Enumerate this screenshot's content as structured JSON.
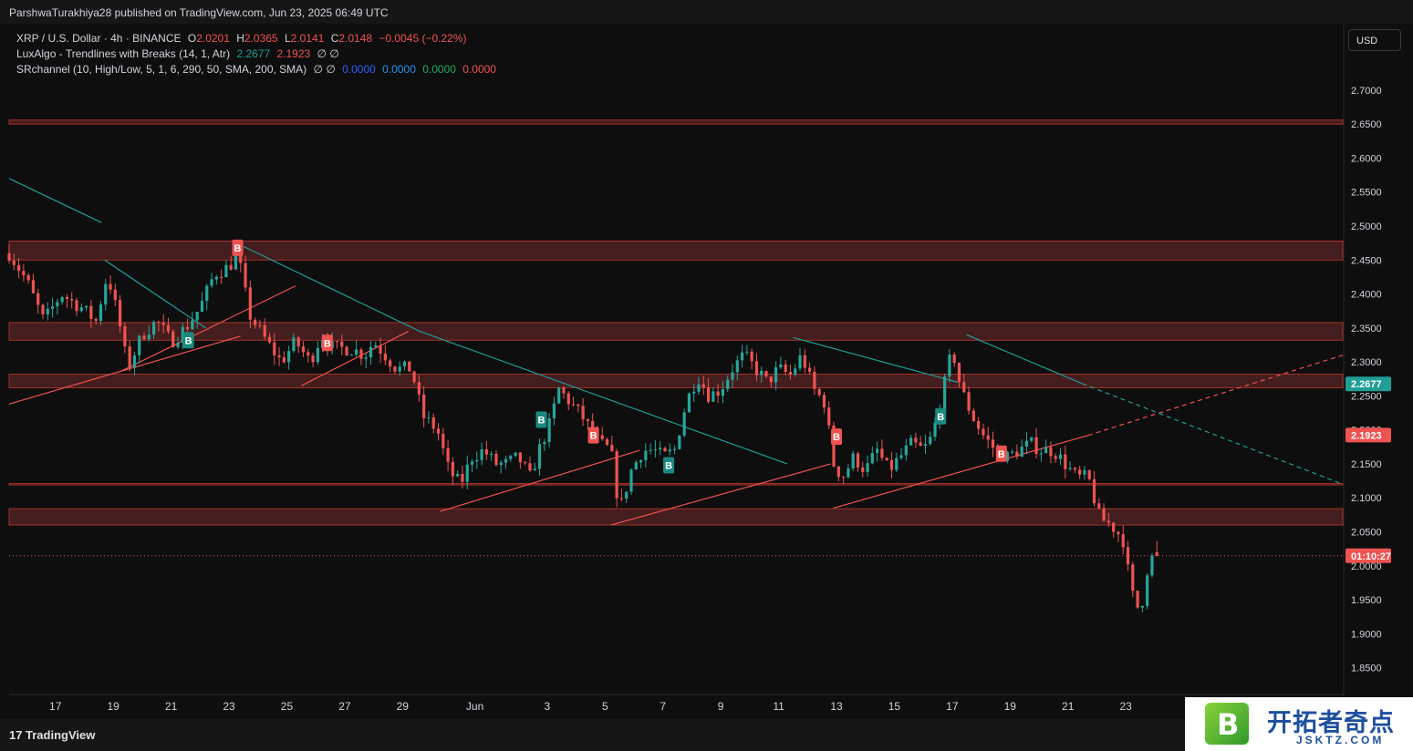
{
  "header": {
    "publish_text": "ParshwaTurakhiya28 published on TradingView.com, Jun 23, 2025 06:49 UTC"
  },
  "legend": {
    "symbol": "XRP / U.S. Dollar · 4h · BINANCE",
    "o_label": "O",
    "o_value": "2.0201",
    "h_label": "H",
    "h_value": "2.0365",
    "l_label": "L",
    "l_value": "2.0141",
    "c_label": "C",
    "c_value": "2.0148",
    "change": "−0.0045 (−0.22%)",
    "ind1_name": "LuxAlgo - Trendlines with Breaks (14, 1, Atr)",
    "ind1_v1": "2.2677",
    "ind1_v2": "2.1923",
    "ind1_v3": "∅ ∅",
    "ind2_name": "SRchannel (10, High/Low, 5, 1, 6, 290, 50, SMA, 200, SMA)",
    "ind2_v0": "∅ ∅",
    "ind2_v1": "0.0000",
    "ind2_v2": "0.0000",
    "ind2_v3": "0.0000",
    "ind2_v4": "0.0000"
  },
  "currency_button": "USD",
  "footer": {
    "brand": "TradingView"
  },
  "watermark": {
    "cn": "开拓者奇点",
    "en": "JSKTZ.COM",
    "mark": "B"
  },
  "colors": {
    "background": "#0e0e0e",
    "up": "#26a69a",
    "down": "#ef5350",
    "zone_fill": "#4a1f20",
    "zone_edge": "#c0392b",
    "trend_up": "#ef5350",
    "trend_down": "#1f9e95"
  },
  "chart_data": {
    "type": "candlestick",
    "ylim": [
      1.82,
      2.72
    ],
    "y_ticks": [
      "2.7000",
      "2.6500",
      "2.6000",
      "2.5500",
      "2.5000",
      "2.4500",
      "2.4000",
      "2.3500",
      "2.3000",
      "2.2500",
      "2.2000",
      "2.1500",
      "2.1000",
      "2.0500",
      "2.0000",
      "1.9500",
      "1.9000",
      "1.8500"
    ],
    "y_tick_values": [
      2.7,
      2.65,
      2.6,
      2.55,
      2.5,
      2.45,
      2.4,
      2.35,
      2.3,
      2.25,
      2.2,
      2.15,
      2.1,
      2.05,
      2.0,
      1.95,
      1.9,
      1.85
    ],
    "x_ticks": [
      "17",
      "19",
      "21",
      "23",
      "25",
      "27",
      "29",
      "Jun",
      "3",
      "5",
      "7",
      "9",
      "11",
      "13",
      "15",
      "17",
      "19",
      "21",
      "23"
    ],
    "x_tick_days": [
      0,
      2,
      4,
      6,
      8,
      10,
      12,
      14.5,
      17,
      19,
      21,
      23,
      25,
      27,
      29,
      31,
      33,
      35,
      37
    ],
    "x_day_range": [
      -1.6,
      44.5
    ],
    "price_labels": [
      {
        "text": "2.2677",
        "value": 2.2677,
        "color": "#1f9e95"
      },
      {
        "text": "2.1923",
        "value": 2.1923,
        "color": "#ef5350"
      },
      {
        "text": "01:10:27",
        "value": 2.0148,
        "color": "#ef5350"
      }
    ],
    "zones": [
      {
        "low": 2.65,
        "high": 2.656
      },
      {
        "low": 2.45,
        "high": 2.478
      },
      {
        "low": 2.332,
        "high": 2.358
      },
      {
        "low": 2.262,
        "high": 2.282
      },
      {
        "low": 2.06,
        "high": 2.084
      },
      {
        "low": 2.119,
        "high": 2.121
      }
    ],
    "trendlines": [
      {
        "kind": "resist",
        "x1": -1.6,
        "y1": 2.57,
        "x2": 1.6,
        "y2": 2.505
      },
      {
        "kind": "resist",
        "x1": 1.7,
        "y1": 2.45,
        "x2": 5.2,
        "y2": 2.35
      },
      {
        "kind": "support",
        "x1": -1.6,
        "y1": 2.238,
        "x2": 6.4,
        "y2": 2.338
      },
      {
        "kind": "support",
        "x1": 2.2,
        "y1": 2.285,
        "x2": 8.3,
        "y2": 2.412
      },
      {
        "kind": "resist",
        "x1": 6.5,
        "y1": 2.47,
        "x2": 12.6,
        "y2": 2.345
      },
      {
        "kind": "resist",
        "x1": 12.6,
        "y1": 2.345,
        "x2": 25.3,
        "y2": 2.15
      },
      {
        "kind": "support",
        "x1": 8.5,
        "y1": 2.265,
        "x2": 12.2,
        "y2": 2.345
      },
      {
        "kind": "support",
        "x1": 13.3,
        "y1": 2.08,
        "x2": 20.2,
        "y2": 2.17
      },
      {
        "kind": "support",
        "x1": 19.2,
        "y1": 2.06,
        "x2": 26.8,
        "y2": 2.15
      },
      {
        "kind": "resist",
        "x1": 25.5,
        "y1": 2.336,
        "x2": 31.2,
        "y2": 2.27
      },
      {
        "kind": "support",
        "x1": 26.9,
        "y1": 2.085,
        "x2": 35.7,
        "y2": 2.192
      },
      {
        "kind": "support-dash",
        "x1": 35.7,
        "y1": 2.192,
        "x2": 44.5,
        "y2": 2.31
      },
      {
        "kind": "resist",
        "x1": 31.5,
        "y1": 2.34,
        "x2": 35.5,
        "y2": 2.268
      },
      {
        "kind": "resist-dash",
        "x1": 35.5,
        "y1": 2.268,
        "x2": 44.5,
        "y2": 2.12
      }
    ],
    "signals": [
      {
        "text": "B",
        "type": "buy",
        "day": 4.6,
        "price": 2.332
      },
      {
        "text": "B",
        "type": "sell",
        "day": 6.3,
        "price": 2.468
      },
      {
        "text": "B",
        "type": "sell",
        "day": 9.4,
        "price": 2.328
      },
      {
        "text": "B",
        "type": "buy",
        "day": 16.8,
        "price": 2.215
      },
      {
        "text": "B",
        "type": "sell",
        "day": 18.6,
        "price": 2.192
      },
      {
        "text": "B",
        "type": "buy",
        "day": 21.2,
        "price": 2.148
      },
      {
        "text": "B",
        "type": "sell",
        "day": 27.0,
        "price": 2.19
      },
      {
        "text": "B",
        "type": "buy",
        "day": 30.6,
        "price": 2.22
      },
      {
        "text": "B",
        "type": "sell",
        "day": 32.7,
        "price": 2.165
      }
    ],
    "anchors": [
      [
        -1.6,
        2.46
      ],
      [
        -1.0,
        2.42
      ],
      [
        -0.4,
        2.36
      ],
      [
        0.2,
        2.4
      ],
      [
        0.9,
        2.38
      ],
      [
        1.4,
        2.36
      ],
      [
        1.8,
        2.43
      ],
      [
        2.2,
        2.36
      ],
      [
        2.5,
        2.29
      ],
      [
        3.0,
        2.34
      ],
      [
        3.5,
        2.36
      ],
      [
        4.0,
        2.33
      ],
      [
        4.5,
        2.35
      ],
      [
        5.0,
        2.38
      ],
      [
        5.5,
        2.43
      ],
      [
        6.0,
        2.44
      ],
      [
        6.3,
        2.46
      ],
      [
        6.7,
        2.37
      ],
      [
        7.3,
        2.33
      ],
      [
        7.8,
        2.3
      ],
      [
        8.3,
        2.33
      ],
      [
        8.8,
        2.3
      ],
      [
        9.2,
        2.34
      ],
      [
        9.6,
        2.32
      ],
      [
        10.2,
        2.32
      ],
      [
        10.7,
        2.31
      ],
      [
        11.0,
        2.33
      ],
      [
        11.4,
        2.31
      ],
      [
        11.8,
        2.29
      ],
      [
        12.3,
        2.29
      ],
      [
        12.7,
        2.22
      ],
      [
        13.2,
        2.2
      ],
      [
        13.6,
        2.14
      ],
      [
        14.0,
        2.12
      ],
      [
        14.4,
        2.16
      ],
      [
        14.8,
        2.17
      ],
      [
        15.2,
        2.15
      ],
      [
        15.6,
        2.15
      ],
      [
        16.0,
        2.16
      ],
      [
        16.4,
        2.13
      ],
      [
        16.8,
        2.18
      ],
      [
        17.1,
        2.21
      ],
      [
        17.4,
        2.26
      ],
      [
        17.8,
        2.24
      ],
      [
        18.2,
        2.22
      ],
      [
        18.5,
        2.2
      ],
      [
        18.8,
        2.18
      ],
      [
        19.2,
        2.17
      ],
      [
        19.5,
        2.08
      ],
      [
        19.9,
        2.14
      ],
      [
        20.3,
        2.17
      ],
      [
        20.7,
        2.17
      ],
      [
        21.0,
        2.16
      ],
      [
        21.4,
        2.17
      ],
      [
        21.8,
        2.24
      ],
      [
        22.2,
        2.28
      ],
      [
        22.6,
        2.25
      ],
      [
        23.0,
        2.26
      ],
      [
        23.4,
        2.29
      ],
      [
        23.8,
        2.31
      ],
      [
        24.2,
        2.29
      ],
      [
        24.6,
        2.27
      ],
      [
        25.0,
        2.29
      ],
      [
        25.4,
        2.28
      ],
      [
        25.8,
        2.31
      ],
      [
        26.2,
        2.26
      ],
      [
        26.6,
        2.24
      ],
      [
        26.9,
        2.15
      ],
      [
        27.2,
        2.13
      ],
      [
        27.6,
        2.16
      ],
      [
        28.0,
        2.14
      ],
      [
        28.4,
        2.17
      ],
      [
        28.8,
        2.14
      ],
      [
        29.2,
        2.16
      ],
      [
        29.6,
        2.18
      ],
      [
        30.0,
        2.17
      ],
      [
        30.3,
        2.19
      ],
      [
        30.6,
        2.24
      ],
      [
        31.0,
        2.32
      ],
      [
        31.3,
        2.26
      ],
      [
        31.7,
        2.22
      ],
      [
        32.1,
        2.19
      ],
      [
        32.5,
        2.17
      ],
      [
        32.9,
        2.16
      ],
      [
        33.3,
        2.17
      ],
      [
        33.7,
        2.18
      ],
      [
        34.1,
        2.17
      ],
      [
        34.5,
        2.17
      ],
      [
        34.9,
        2.15
      ],
      [
        35.3,
        2.13
      ],
      [
        35.7,
        2.13
      ],
      [
        36.1,
        2.07
      ],
      [
        36.5,
        2.06
      ],
      [
        36.9,
        2.04
      ],
      [
        37.2,
        1.96
      ],
      [
        37.5,
        1.93
      ],
      [
        37.8,
        2.01
      ],
      [
        38.1,
        2.0148
      ]
    ]
  }
}
